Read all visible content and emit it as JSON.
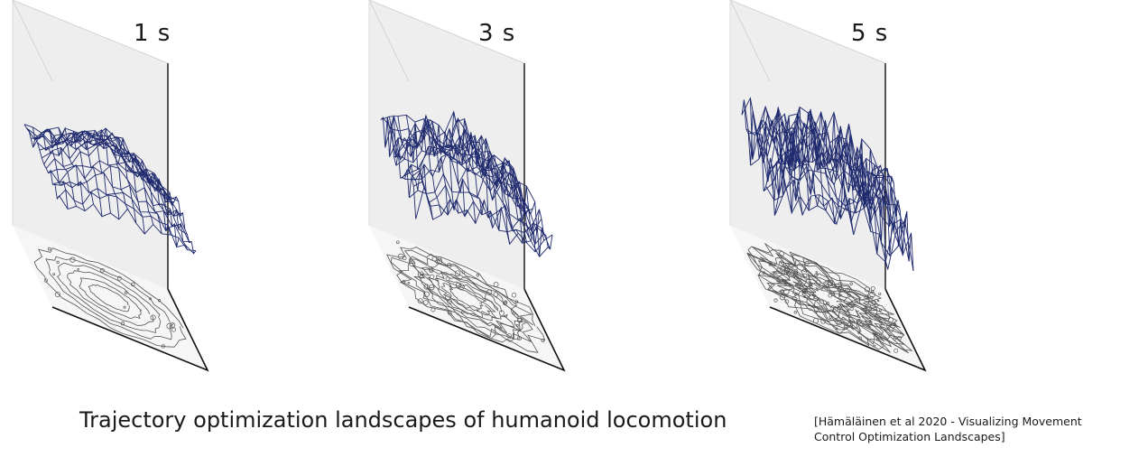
{
  "panels": [
    {
      "title": "1 s",
      "roughness": 1
    },
    {
      "title": "3 s",
      "roughness": 3
    },
    {
      "title": "5 s",
      "roughness": 5
    }
  ],
  "caption": "Trajectory optimization landscapes of humanoid locomotion",
  "citation": {
    "line1": "[Hämäläinen et al 2020 - Visualizing Movement",
    "line2": "Control Optimization Landscapes]"
  },
  "colors": {
    "surface": "#1f2a6e",
    "contour": "#555555",
    "pane_back": "#eeeeee",
    "pane_left": "#f4f4f4",
    "floor": "#f6f6f6",
    "axis": "#111111"
  }
}
